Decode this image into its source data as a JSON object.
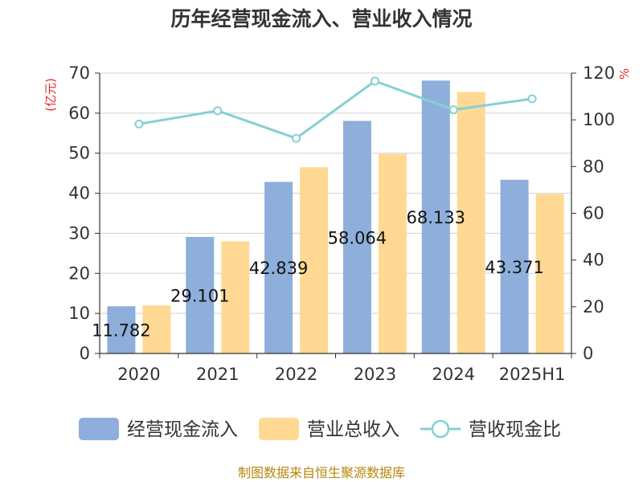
{
  "chart_data": {
    "type": "bar",
    "title": "历年经营现金流入、营业收入情况",
    "categories": [
      "2020",
      "2021",
      "2022",
      "2023",
      "2024",
      "2025H1"
    ],
    "series": [
      {
        "name": "经营现金流入",
        "type": "bar",
        "axis": "left",
        "color": "#8eaedb",
        "values": [
          11.782,
          29.101,
          42.839,
          58.064,
          68.133,
          43.371
        ],
        "labels": [
          "11.782",
          "29.101",
          "42.839",
          "58.064",
          "68.133",
          "43.371"
        ]
      },
      {
        "name": "营业总收入",
        "type": "bar",
        "axis": "left",
        "color": "#ffd993",
        "values": [
          12.0,
          28.0,
          46.5,
          49.8,
          65.3,
          39.8
        ]
      },
      {
        "name": "营收现金比",
        "type": "line",
        "axis": "right",
        "color": "#86d0d3",
        "values": [
          98.2,
          103.9,
          92.1,
          116.6,
          104.3,
          109.0
        ]
      }
    ],
    "y_left": {
      "label": "(亿元)",
      "min": 0,
      "max": 70,
      "ticks": [
        "0",
        "10",
        "20",
        "30",
        "40",
        "50",
        "60",
        "70"
      ]
    },
    "y_right": {
      "label": "%",
      "min": 0,
      "max": 120,
      "ticks": [
        "0",
        "20",
        "40",
        "60",
        "80",
        "100",
        "120"
      ]
    },
    "grid": true,
    "legend_position": "bottom"
  },
  "source": "制图数据来自恒生聚源数据库"
}
